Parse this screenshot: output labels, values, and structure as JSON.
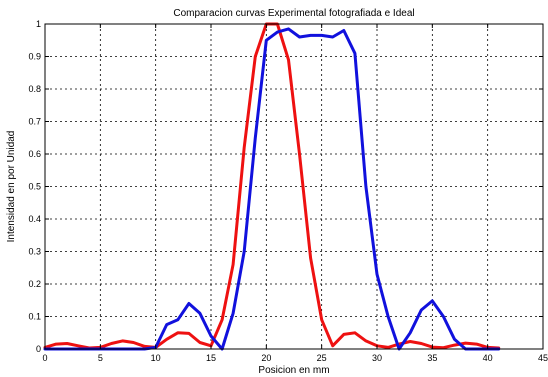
{
  "chart_data": {
    "type": "line",
    "title": "Comparacion curvas Experimental fotografiada e Ideal",
    "xlabel": "Posicion en mm",
    "ylabel": "Intensidad en por Unidad",
    "xlim": [
      0,
      45
    ],
    "ylim": [
      0,
      1
    ],
    "xticks": [
      0,
      5,
      10,
      15,
      20,
      25,
      30,
      35,
      40,
      45
    ],
    "yticks": [
      0,
      0.1,
      0.2,
      0.3,
      0.4,
      0.5,
      0.6,
      0.7,
      0.8,
      0.9,
      1
    ],
    "xtick_labels": [
      "0",
      "5",
      "10",
      "15",
      "20",
      "25",
      "30",
      "35",
      "40",
      "45"
    ],
    "ytick_labels": [
      "0",
      "0.1",
      "0.2",
      "0.3",
      "0.4",
      "0.5",
      "0.6",
      "0.7",
      "0.8",
      "0.9",
      "1"
    ],
    "grid": true,
    "series": [
      {
        "color": "#ee1111",
        "x": [
          0,
          1,
          2,
          3,
          4,
          5,
          6,
          7,
          8,
          9,
          10,
          11,
          12,
          13,
          14,
          15,
          16,
          17,
          18,
          19,
          20,
          21,
          22,
          23,
          24,
          25,
          26,
          27,
          28,
          29,
          30,
          31,
          32,
          33,
          34,
          35,
          36,
          37,
          38,
          39,
          40,
          41
        ],
        "y": [
          0.005,
          0.015,
          0.017,
          0.01,
          0.003,
          0.005,
          0.017,
          0.025,
          0.02,
          0.008,
          0.005,
          0.03,
          0.05,
          0.048,
          0.02,
          0.01,
          0.09,
          0.26,
          0.62,
          0.9,
          1.0,
          1.0,
          0.89,
          0.6,
          0.28,
          0.09,
          0.01,
          0.045,
          0.05,
          0.025,
          0.01,
          0.005,
          0.015,
          0.023,
          0.017,
          0.006,
          0.004,
          0.012,
          0.018,
          0.015,
          0.005,
          0.003
        ]
      },
      {
        "color": "#1111dd",
        "x": [
          0,
          1,
          2,
          3,
          4,
          5,
          6,
          7,
          8,
          9,
          10,
          11,
          12,
          13,
          14,
          15,
          16,
          17,
          18,
          19,
          20,
          21,
          22,
          23,
          24,
          25,
          26,
          27,
          28,
          29,
          30,
          31,
          32,
          33,
          34,
          35,
          36,
          37,
          38,
          39,
          40,
          41
        ],
        "y": [
          0,
          0,
          0,
          0,
          0,
          0,
          0,
          0,
          0,
          0,
          0.005,
          0.075,
          0.09,
          0.14,
          0.11,
          0.04,
          0.0,
          0.11,
          0.3,
          0.65,
          0.95,
          0.975,
          0.985,
          0.96,
          0.965,
          0.965,
          0.96,
          0.98,
          0.91,
          0.5,
          0.23,
          0.1,
          0.0,
          0.05,
          0.12,
          0.148,
          0.1,
          0.03,
          0.0,
          0.0,
          0.0,
          0.0
        ]
      }
    ]
  }
}
